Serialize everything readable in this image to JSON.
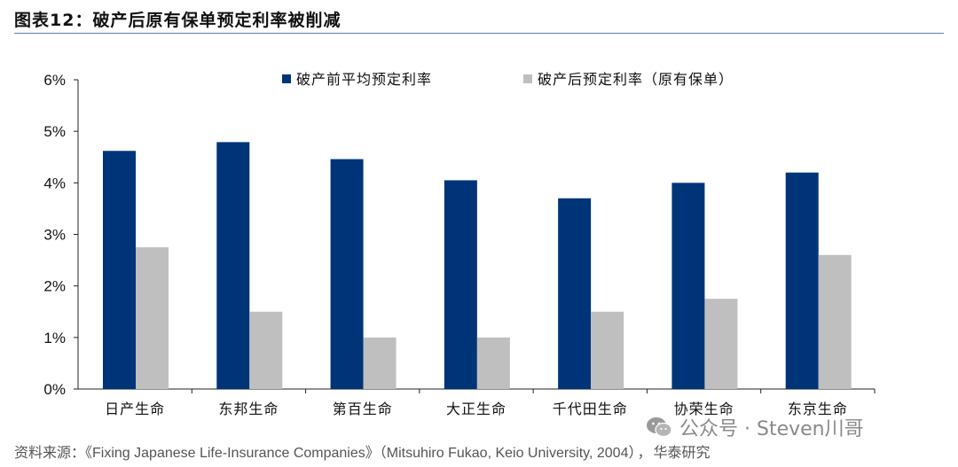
{
  "figure": {
    "label": "图表12：",
    "title": "破产后原有保单预定利率被削减"
  },
  "chart_data": {
    "type": "bar",
    "categories": [
      "日产生命",
      "东邦生命",
      "第百生命",
      "大正生命",
      "千代田生命",
      "协荣生命",
      "东京生命"
    ],
    "series": [
      {
        "name": "破产前平均预定利率",
        "values": [
          4.62,
          4.79,
          4.46,
          4.05,
          3.7,
          4.0,
          4.2
        ],
        "color": "#003478"
      },
      {
        "name": "破产后预定利率（原有保单）",
        "values": [
          2.75,
          1.5,
          1.0,
          1.0,
          1.5,
          1.75,
          2.6
        ],
        "color": "#bfbfbf"
      }
    ],
    "ylim": [
      0,
      6
    ],
    "yticks": [
      0,
      1,
      2,
      3,
      4,
      5,
      6
    ],
    "ytick_labels": [
      "0%",
      "1%",
      "2%",
      "3%",
      "4%",
      "5%",
      "6%"
    ],
    "legend_position": "top",
    "grid": false
  },
  "source": {
    "prefix": "资料来源：",
    "book": "《Fixing Japanese Life-Insurance Companies》",
    "author": "（Mitsuhiro Fukao, Keio University, 2004）",
    "separator": "，",
    "org": "华泰研究"
  },
  "watermark": {
    "text": "公众号 · Steven川哥",
    "icon": "wechat-icon"
  }
}
